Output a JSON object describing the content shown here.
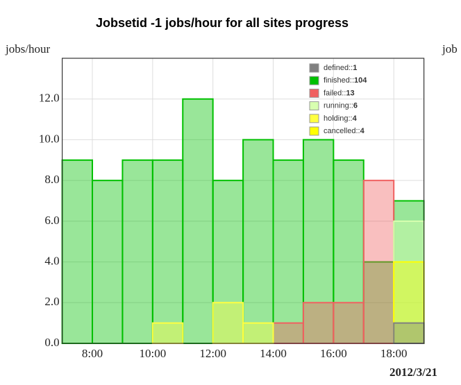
{
  "chart_data": {
    "type": "histogram",
    "title": "Jobsetid -1 jobs/hour for all sites progress",
    "ylabel": "jobs/hour",
    "y2label": "job",
    "date_label": "2012/3/21",
    "bins": [
      7,
      8,
      9,
      10,
      11,
      12,
      13,
      14,
      15,
      16,
      17,
      18,
      19
    ],
    "xlim": [
      7,
      19
    ],
    "xticks": [
      {
        "value": 8,
        "label": "8:00"
      },
      {
        "value": 10,
        "label": "10:00"
      },
      {
        "value": 12,
        "label": "12:00"
      },
      {
        "value": 14,
        "label": "14:00"
      },
      {
        "value": 16,
        "label": "16:00"
      },
      {
        "value": 18,
        "label": "18:00"
      }
    ],
    "ylim": [
      0,
      14
    ],
    "yticks": [
      {
        "value": 0,
        "label": "0.0"
      },
      {
        "value": 2,
        "label": "2.0"
      },
      {
        "value": 4,
        "label": "4.0"
      },
      {
        "value": 6,
        "label": "6.0"
      },
      {
        "value": 8,
        "label": "8.0"
      },
      {
        "value": 10,
        "label": "10.0"
      },
      {
        "value": 12,
        "label": "12.0"
      }
    ],
    "grid": true,
    "series": [
      {
        "name": "finished::",
        "total": 104,
        "color": "#00c000",
        "values": [
          9,
          8,
          9,
          9,
          12,
          8,
          10,
          9,
          10,
          9,
          4,
          7
        ]
      },
      {
        "name": "failed::",
        "total": 13,
        "color": "#f06060",
        "values": [
          0,
          0,
          0,
          0,
          0,
          0,
          0,
          1,
          2,
          2,
          8,
          0
        ]
      },
      {
        "name": "running::",
        "total": 6,
        "color": "#d8ffb0",
        "values": [
          0,
          0,
          0,
          0,
          0,
          0,
          0,
          0,
          0,
          0,
          0,
          6
        ]
      },
      {
        "name": "holding::",
        "total": 4,
        "color": "#ffff40",
        "values": [
          0,
          0,
          0,
          1,
          0,
          2,
          1,
          0,
          0,
          0,
          0,
          0
        ]
      },
      {
        "name": "cancelled::",
        "total": 4,
        "color": "#ffff00",
        "values": [
          0,
          0,
          0,
          0,
          0,
          0,
          0,
          0,
          0,
          0,
          0,
          4
        ]
      },
      {
        "name": "defined::",
        "total": 1,
        "color": "#808080",
        "values": [
          0,
          0,
          0,
          0,
          0,
          0,
          0,
          0,
          0,
          0,
          0,
          1
        ]
      }
    ],
    "legend_order": [
      5,
      0,
      1,
      2,
      3,
      4
    ]
  }
}
